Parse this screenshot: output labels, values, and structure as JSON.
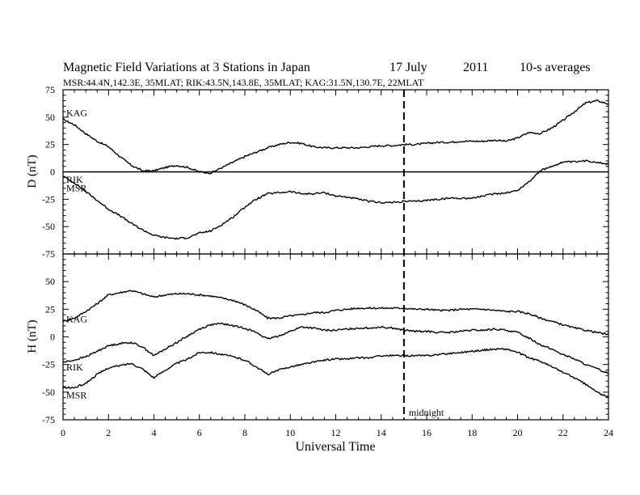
{
  "header": {
    "title": "Magnetic Field Variations at 3 Stations in Japan",
    "date": "17 July",
    "year": "2011",
    "averaging": "10-s averages",
    "stations_line": "MSR:44.4N,142.3E, 35MLAT;  RIK:43.5N,143.8E, 35MLAT;  KAG:31.5N,130.7E, 22MLAT"
  },
  "chart_data": [
    {
      "type": "line",
      "panel": "D",
      "ylabel": "D (nT)",
      "xlim": [
        0,
        24
      ],
      "ylim": [
        -75,
        75
      ],
      "yticks": [
        "75",
        "50",
        "25",
        "0",
        "-25",
        "-50",
        "-75"
      ],
      "zero_line": true,
      "series": [
        {
          "name": "KAG",
          "x": [
            0,
            0.5,
            1,
            1.5,
            2,
            2.5,
            3,
            3.5,
            4,
            4.5,
            5,
            5.5,
            6,
            6.5,
            7,
            7.5,
            8,
            8.5,
            9,
            9.5,
            10,
            10.5,
            11,
            11.5,
            12,
            12.5,
            13,
            13.5,
            14,
            14.5,
            15,
            15.5,
            16,
            16.5,
            17,
            17.5,
            18,
            18.5,
            19,
            19.5,
            20,
            20.5,
            21,
            21.5,
            22,
            22.5,
            23,
            23.5,
            24
          ],
          "values": [
            48,
            43,
            35,
            28,
            23,
            14,
            6,
            1,
            1,
            4,
            6,
            4,
            0,
            -1,
            4,
            9,
            14,
            18,
            22,
            25,
            27,
            26,
            23,
            22,
            22,
            22,
            22,
            23,
            24,
            24,
            25,
            25,
            26,
            27,
            27,
            28,
            28,
            28,
            29,
            28,
            31,
            36,
            35,
            40,
            47,
            55,
            63,
            65,
            62
          ]
        },
        {
          "name": "RIK",
          "x": [
            0,
            0.5,
            1,
            1.5,
            2,
            2.5,
            3,
            3.5,
            4,
            4.5,
            5,
            5.5,
            6,
            6.5,
            7,
            7.5,
            8,
            8.5,
            9,
            9.5,
            10,
            10.5,
            11,
            11.5,
            12,
            12.5,
            13,
            13.5,
            14,
            14.5,
            15,
            15.5,
            16,
            16.5,
            17,
            17.5,
            18,
            18.5,
            19,
            19.5,
            20,
            20.5,
            21,
            21.5,
            22,
            22.5,
            23,
            23.5,
            24
          ],
          "values": [
            -4,
            -10,
            -18,
            -26,
            -34,
            -40,
            -47,
            -53,
            -58,
            -60,
            -61,
            -60,
            -56,
            -54,
            -48,
            -41,
            -32,
            -25,
            -20,
            -19,
            -18,
            -20,
            -20,
            -19,
            -22,
            -23,
            -25,
            -27,
            -28,
            -28,
            -27,
            -27,
            -26,
            -25,
            -24,
            -24,
            -24,
            -22,
            -20,
            -19,
            -17,
            -9,
            1,
            5,
            9,
            9,
            10,
            9,
            7
          ]
        }
      ]
    },
    {
      "type": "line",
      "panel": "H",
      "ylabel": "H (nT)",
      "xlim": [
        0,
        24
      ],
      "ylim": [
        -75,
        75
      ],
      "yticks": [
        "50",
        "25",
        "0",
        "-25",
        "-50",
        "-75"
      ],
      "series": [
        {
          "name": "KAG",
          "x": [
            0,
            0.5,
            1,
            1.5,
            2,
            2.5,
            3,
            3.5,
            4,
            4.5,
            5,
            5.5,
            6,
            6.5,
            7,
            7.5,
            8,
            8.5,
            9,
            9.5,
            10,
            10.5,
            11,
            11.5,
            12,
            12.5,
            13,
            13.5,
            14,
            14.5,
            15,
            15.5,
            16,
            16.5,
            17,
            17.5,
            18,
            18.5,
            19,
            19.5,
            20,
            20.5,
            21,
            21.5,
            22,
            22.5,
            23,
            23.5,
            24
          ],
          "values": [
            14,
            17,
            23,
            30,
            38,
            40,
            42,
            39,
            36,
            38,
            39,
            39,
            38,
            37,
            35,
            33,
            29,
            24,
            17,
            17,
            19,
            20,
            22,
            22,
            24,
            25,
            26,
            26,
            26,
            26,
            26,
            25,
            25,
            24,
            24,
            25,
            25,
            25,
            24,
            23,
            23,
            21,
            17,
            14,
            11,
            8,
            6,
            4,
            2
          ]
        },
        {
          "name": "RIK",
          "x": [
            0,
            0.5,
            1,
            1.5,
            2,
            2.5,
            3,
            3.5,
            4,
            4.5,
            5,
            5.5,
            6,
            6.5,
            7,
            7.5,
            8,
            8.5,
            9,
            9.5,
            10,
            10.5,
            11,
            11.5,
            12,
            12.5,
            13,
            13.5,
            14,
            14.5,
            15,
            15.5,
            16,
            16.5,
            17,
            17.5,
            18,
            18.5,
            19,
            19.5,
            20,
            20.5,
            21,
            21.5,
            22,
            22.5,
            23,
            23.5,
            24
          ],
          "values": [
            -23,
            -21,
            -18,
            -13,
            -8,
            -6,
            -5,
            -9,
            -17,
            -11,
            -5,
            1,
            7,
            11,
            12,
            10,
            8,
            4,
            -2,
            1,
            5,
            9,
            8,
            6,
            6,
            7,
            8,
            8,
            9,
            8,
            6,
            5,
            5,
            4,
            4,
            5,
            6,
            6,
            7,
            6,
            4,
            -1,
            -7,
            -11,
            -16,
            -20,
            -25,
            -29,
            -33
          ]
        },
        {
          "name": "MSR",
          "x": [
            0,
            0.5,
            1,
            1.5,
            2,
            2.5,
            3,
            3.5,
            4,
            4.5,
            5,
            5.5,
            6,
            6.5,
            7,
            7.5,
            8,
            8.5,
            9,
            9.5,
            10,
            10.5,
            11,
            11.5,
            12,
            12.5,
            13,
            13.5,
            14,
            14.5,
            15,
            15.5,
            16,
            16.5,
            17,
            17.5,
            18,
            18.5,
            19,
            19.5,
            20,
            20.5,
            21,
            21.5,
            22,
            22.5,
            23,
            23.5,
            24
          ],
          "values": [
            -46,
            -46,
            -42,
            -34,
            -28,
            -26,
            -24,
            -29,
            -37,
            -30,
            -24,
            -20,
            -14,
            -14,
            -16,
            -18,
            -21,
            -27,
            -34,
            -30,
            -27,
            -25,
            -23,
            -21,
            -20,
            -20,
            -19,
            -19,
            -17,
            -17,
            -17,
            -17,
            -17,
            -16,
            -15,
            -14,
            -13,
            -12,
            -11,
            -11,
            -14,
            -19,
            -22,
            -27,
            -32,
            -37,
            -43,
            -50,
            -55
          ]
        }
      ]
    }
  ],
  "xaxis": {
    "label": "Universal Time",
    "ticks": [
      "0",
      "2",
      "4",
      "6",
      "8",
      "10",
      "12",
      "14",
      "16",
      "18",
      "20",
      "22",
      "24"
    ]
  },
  "marker": {
    "x": 15,
    "label": "midnight"
  }
}
